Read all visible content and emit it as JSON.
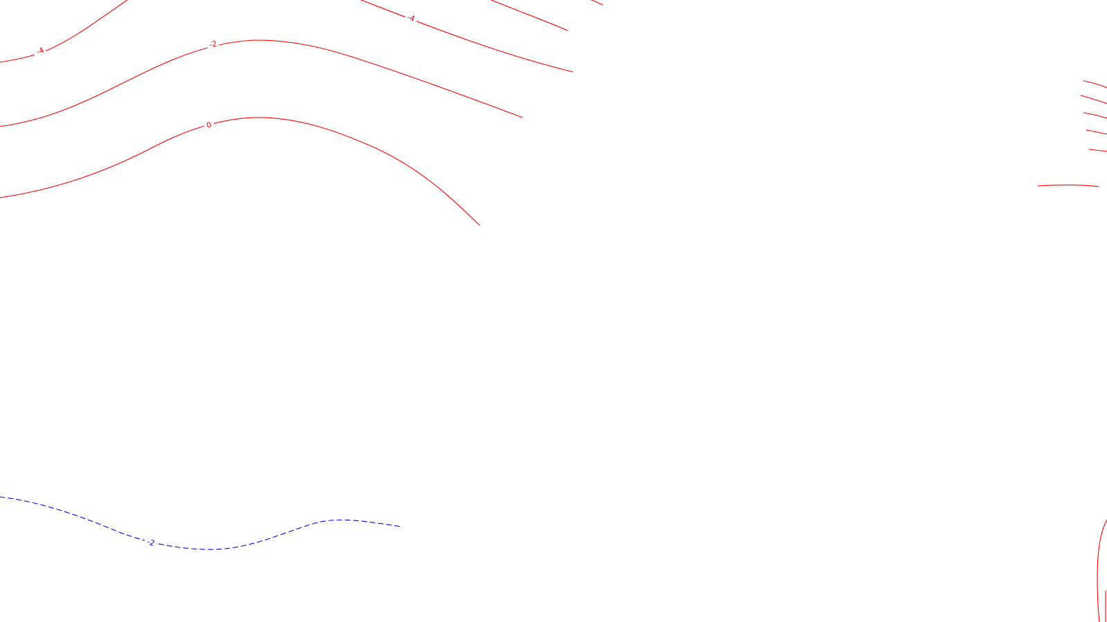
{
  "map": {
    "background": "#ffffff",
    "colors": {
      "positive": "#ff0000",
      "negative": "#0000ff"
    },
    "labels": {
      "red_upper_left": "-4",
      "red_upper_right": "-4",
      "red_middle": "-2",
      "red_lower": "0",
      "blue_dashed": "-2"
    }
  }
}
